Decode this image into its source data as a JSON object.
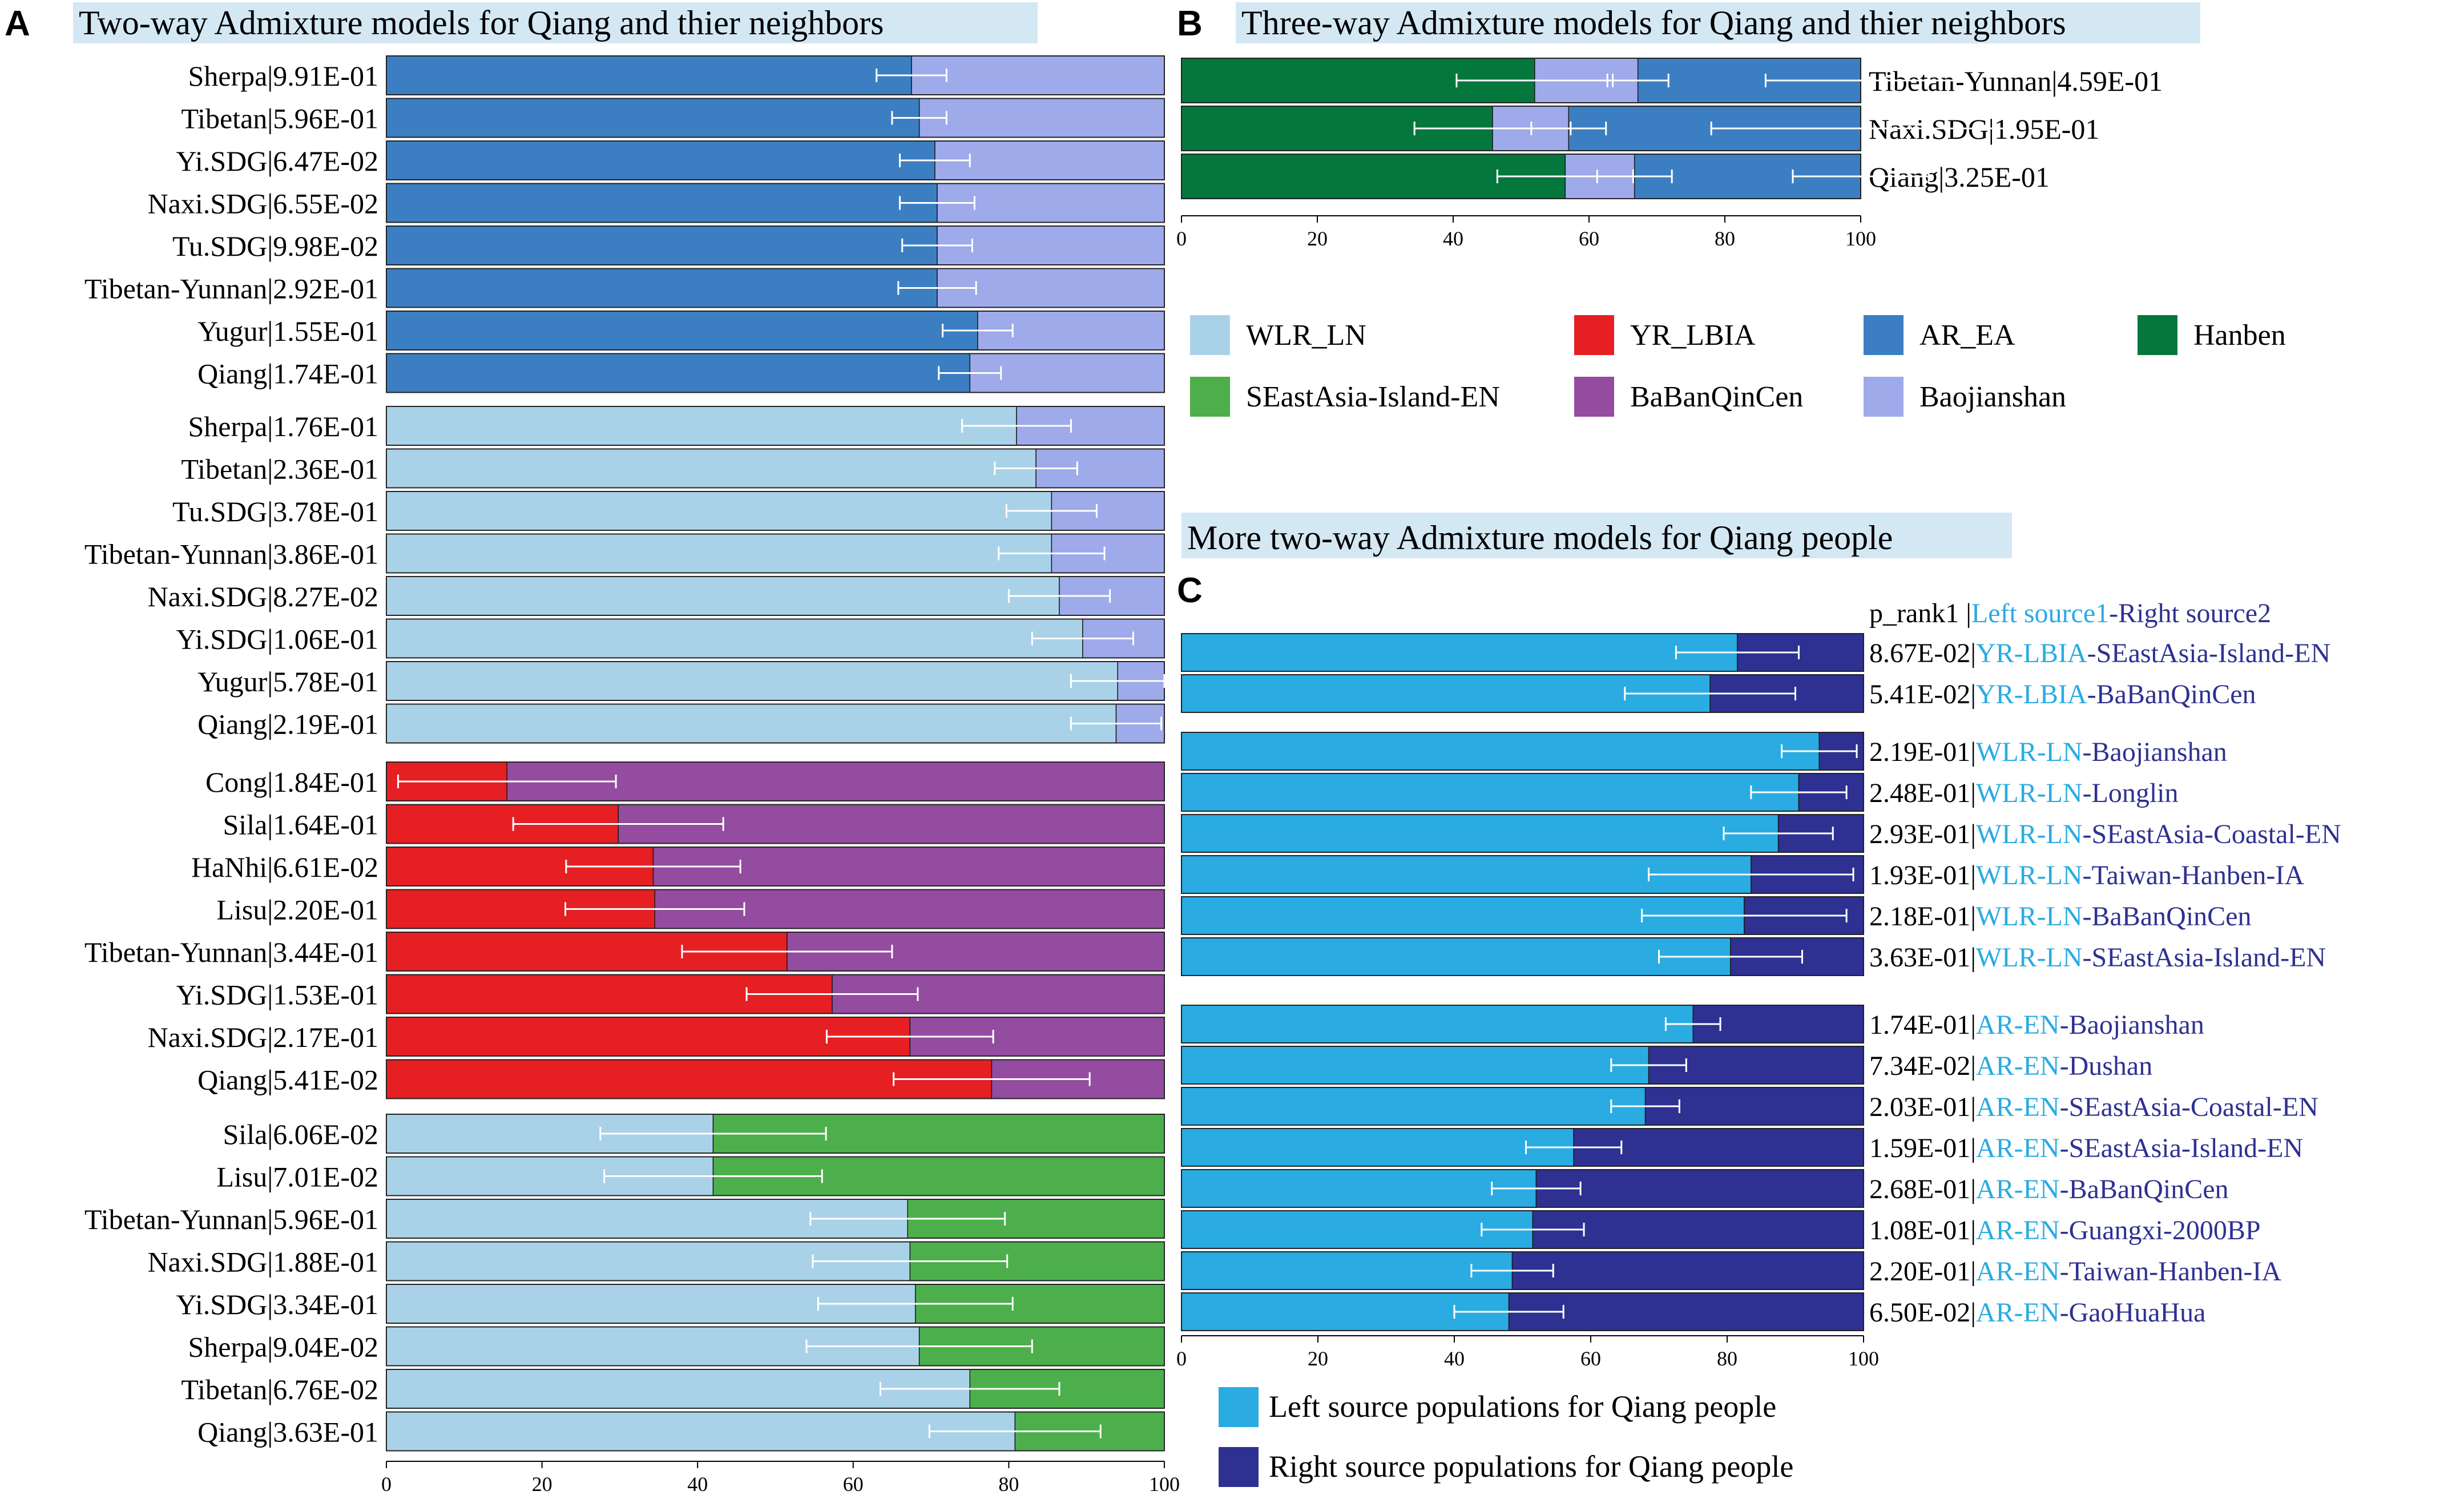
{
  "colors": {
    "WLR_LN": "#a9d2e8",
    "YR_LBIA": "#e61f23",
    "AR_EA": "#3b7fc2",
    "Hanben": "#04773d",
    "SEastAsia-Island-EN": "#4caf4b",
    "BaBanQinCen": "#934c9f",
    "Baojianshan": "#9eaae9",
    "left_source": "#2aabe2",
    "right_source": "#2e3191",
    "title_bg": "#d4e8f4",
    "label_c_source1": "#29abe2",
    "label_c_source2": "#2e3191",
    "errorbar": "#ffffff"
  },
  "panel_a": {
    "letter": "A",
    "title": "Two-way Admixture models for Qiang and thier neighbors",
    "axis_ticks": [
      "0",
      "20",
      "40",
      "60",
      "80",
      "100"
    ]
  },
  "panel_b": {
    "letter": "B",
    "title": "Three-way Admixture models for Qiang and thier neighbors",
    "axis_ticks": [
      "0",
      "20",
      "40",
      "60",
      "80",
      "100"
    ]
  },
  "legend_b": {
    "items": [
      {
        "label": "WLR_LN",
        "color_key": "WLR_LN"
      },
      {
        "label": "YR_LBIA",
        "color_key": "YR_LBIA"
      },
      {
        "label": "AR_EA",
        "color_key": "AR_EA"
      },
      {
        "label": "Hanben",
        "color_key": "Hanben"
      },
      {
        "label": "SEastAsia-Island-EN",
        "color_key": "SEastAsia-Island-EN"
      },
      {
        "label": "BaBanQinCen",
        "color_key": "BaBanQinCen"
      },
      {
        "label": "Baojianshan",
        "color_key": "Baojianshan"
      }
    ]
  },
  "panel_c": {
    "letter": "C",
    "title": "More two-way Admixture models for Qiang people",
    "header_rank": "p_rank1",
    "header_sep": "|",
    "header_left": "Left source1",
    "header_dash": "-",
    "header_right": "Right source2",
    "axis_ticks": [
      "0",
      "20",
      "40",
      "60",
      "80",
      "100"
    ]
  },
  "legend_c": {
    "items": [
      {
        "label": "Left source populations for Qiang people",
        "color_key": "left_source"
      },
      {
        "label": "Right source populations for Qiang people",
        "color_key": "right_source"
      }
    ]
  },
  "chart_data": [
    {
      "type": "bar",
      "stacked": true,
      "orientation": "horizontal",
      "panel": "A",
      "title": "Two-way Admixture models for Qiang and thier neighbors",
      "xlim": [
        0,
        100
      ],
      "groups": [
        {
          "sources": [
            "AR_EA",
            "Baojianshan"
          ],
          "rows": [
            {
              "label": "Sherpa|9.91E-01",
              "values": [
                67.5,
                32.5
              ],
              "error": 4.5
            },
            {
              "label": "Tibetan|5.96E-01",
              "values": [
                68.5,
                31.5
              ],
              "error": 3.5
            },
            {
              "label": "Yi.SDG|6.47E-02",
              "values": [
                70.5,
                29.5
              ],
              "error": 4.5
            },
            {
              "label": "Naxi.SDG|6.55E-02",
              "values": [
                70.8,
                29.2
              ],
              "error": 4.8
            },
            {
              "label": "Tu.SDG|9.98E-02",
              "values": [
                70.8,
                29.2
              ],
              "error": 4.5
            },
            {
              "label": "Tibetan-Yunnan|2.92E-01",
              "values": [
                70.8,
                29.2
              ],
              "error": 5.0
            },
            {
              "label": "Yugur|1.55E-01",
              "values": [
                76.0,
                24.0
              ],
              "error": 4.5
            },
            {
              "label": "Qiang|1.74E-01",
              "values": [
                75.0,
                25.0
              ],
              "error": 4.0
            }
          ]
        },
        {
          "sources": [
            "WLR_LN",
            "Baojianshan"
          ],
          "rows": [
            {
              "label": "Sherpa|1.76E-01",
              "values": [
                81.0,
                19.0
              ],
              "error": 7.0
            },
            {
              "label": "Tibetan|2.36E-01",
              "values": [
                83.5,
                16.5
              ],
              "error": 5.3
            },
            {
              "label": "Tu.SDG|3.78E-01",
              "values": [
                85.5,
                14.5
              ],
              "error": 5.8
            },
            {
              "label": "Tibetan-Yunnan|3.86E-01",
              "values": [
                85.5,
                14.5
              ],
              "error": 6.8
            },
            {
              "label": "Naxi.SDG|8.27E-02",
              "values": [
                86.5,
                13.5
              ],
              "error": 6.5
            },
            {
              "label": "Yi.SDG|1.06E-01",
              "values": [
                89.5,
                10.5
              ],
              "error": 6.5
            },
            {
              "label": "Yugur|5.78E-01",
              "values": [
                94.0,
                6.0
              ],
              "error": 6.0
            },
            {
              "label": "Qiang|2.19E-01",
              "values": [
                93.8,
                6.2
              ],
              "error": 5.8
            }
          ]
        },
        {
          "sources": [
            "YR_LBIA",
            "BaBanQinCen"
          ],
          "rows": [
            {
              "label": "Cong|1.84E-01",
              "values": [
                15.5,
                84.5
              ],
              "error": 14.0
            },
            {
              "label": "Sila|1.64E-01",
              "values": [
                29.8,
                70.2
              ],
              "error": 13.5
            },
            {
              "label": "HaNhi|6.61E-02",
              "values": [
                34.3,
                65.7
              ],
              "error": 11.2
            },
            {
              "label": "Lisu|2.20E-01",
              "values": [
                34.5,
                65.5
              ],
              "error": 11.5
            },
            {
              "label": "Tibetan-Yunnan|3.44E-01",
              "values": [
                51.5,
                48.5
              ],
              "error": 13.5
            },
            {
              "label": "Yi.SDG|1.53E-01",
              "values": [
                57.3,
                42.7
              ],
              "error": 11.0
            },
            {
              "label": "Naxi.SDG|2.17E-01",
              "values": [
                67.3,
                32.7
              ],
              "error": 10.7
            },
            {
              "label": "Qiang|5.41E-02",
              "values": [
                77.8,
                22.2
              ],
              "error": 12.6
            }
          ]
        },
        {
          "sources": [
            "WLR_LN",
            "SEastAsia-Island-EN"
          ],
          "rows": [
            {
              "label": "Sila|6.06E-02",
              "values": [
                42.0,
                58.0
              ],
              "error": 14.5
            },
            {
              "label": "Lisu|7.01E-02",
              "values": [
                42.0,
                58.0
              ],
              "error": 14.0
            },
            {
              "label": "Tibetan-Yunnan|5.96E-01",
              "values": [
                67.0,
                33.0
              ],
              "error": 12.5
            },
            {
              "label": "Naxi.SDG|1.88E-01",
              "values": [
                67.3,
                32.7
              ],
              "error": 12.5
            },
            {
              "label": "Yi.SDG|3.34E-01",
              "values": [
                68.0,
                32.0
              ],
              "error": 12.5
            },
            {
              "label": "Sherpa|9.04E-02",
              "values": [
                68.5,
                31.5
              ],
              "error": 14.5
            },
            {
              "label": "Tibetan|6.76E-02",
              "values": [
                75.0,
                25.0
              ],
              "error": 11.5
            },
            {
              "label": "Qiang|3.63E-01",
              "values": [
                80.8,
                19.2
              ],
              "error": 11.0
            }
          ]
        }
      ]
    },
    {
      "type": "bar",
      "stacked": true,
      "orientation": "horizontal",
      "panel": "B",
      "title": "Three-way Admixture models for Qiang and thier neighbors",
      "xlim": [
        0,
        100
      ],
      "sources": [
        "Hanben",
        "Baojianshan",
        "AR_EA"
      ],
      "rows": [
        {
          "label": "Tibetan-Yunnan|4.59E-01",
          "values": [
            52.0,
            15.2,
            32.8
          ],
          "errors": [
            11.5,
            4.5,
            14.0
          ]
        },
        {
          "label": "Naxi.SDG|1.95E-01",
          "values": [
            45.8,
            11.2,
            43.0
          ],
          "errors": [
            11.5,
            5.5,
            22.0
          ]
        },
        {
          "label": "Qiang|3.25E-01",
          "values": [
            56.5,
            10.2,
            33.3
          ],
          "errors": [
            10.0,
            5.5,
            10.0
          ]
        }
      ]
    },
    {
      "type": "bar",
      "stacked": true,
      "orientation": "horizontal",
      "panel": "C",
      "title": "More two-way Admixture models for Qiang people",
      "xlim": [
        0,
        100
      ],
      "series": [
        "Left source populations for Qiang people",
        "Right source populations for Qiang people"
      ],
      "groups": [
        {
          "rows": [
            {
              "rank": "8.67E-02",
              "left": "YR-LBIA",
              "right": "SEastAsia-Island-EN",
              "values": [
                81.5,
                18.5
              ],
              "error": 9.0
            },
            {
              "rank": "5.41E-02",
              "left": "YR-LBIA",
              "right": "BaBanQinCen",
              "values": [
                77.5,
                22.5
              ],
              "error": 12.5
            }
          ]
        },
        {
          "rows": [
            {
              "rank": "2.19E-01",
              "left": "WLR-LN",
              "right": "Baojianshan",
              "values": [
                93.5,
                6.5
              ],
              "error": 5.5
            },
            {
              "rank": "2.48E-01",
              "left": "WLR-LN",
              "right": "Longlin",
              "values": [
                90.5,
                9.5
              ],
              "error": 7.0
            },
            {
              "rank": "2.93E-01",
              "left": "WLR-LN",
              "right": "SEastAsia-Coastal-EN",
              "values": [
                87.5,
                12.5
              ],
              "error": 8.0
            },
            {
              "rank": "1.93E-01",
              "left": "WLR-LN",
              "right": "Taiwan-Hanben-IA",
              "values": [
                83.5,
                16.5
              ],
              "error": 15.0
            },
            {
              "rank": "2.18E-01",
              "left": "WLR-LN",
              "right": "BaBanQinCen",
              "values": [
                82.5,
                17.5
              ],
              "error": 15.0
            },
            {
              "rank": "3.63E-01",
              "left": "WLR-LN",
              "right": "SEastAsia-Island-EN",
              "values": [
                80.5,
                19.5
              ],
              "error": 10.5
            }
          ]
        },
        {
          "rows": [
            {
              "rank": "1.74E-01",
              "left": "AR-EN",
              "right": "Baojianshan",
              "values": [
                75.0,
                25.0
              ],
              "error": 4.0
            },
            {
              "rank": "7.34E-02",
              "left": "AR-EN",
              "right": "Dushan",
              "values": [
                68.5,
                31.5
              ],
              "error": 5.5
            },
            {
              "rank": "2.03E-01",
              "left": "AR-EN",
              "right": "SEastAsia-Coastal-EN",
              "values": [
                68.0,
                32.0
              ],
              "error": 5.0
            },
            {
              "rank": "1.59E-01",
              "left": "AR-EN",
              "right": "SEastAsia-Island-EN",
              "values": [
                57.5,
                42.5
              ],
              "error": 7.0
            },
            {
              "rank": "2.68E-01",
              "left": "AR-EN",
              "right": "BaBanQinCen",
              "values": [
                52.0,
                48.0
              ],
              "error": 6.5
            },
            {
              "rank": "1.08E-01",
              "left": "AR-EN",
              "right": "Guangxi-2000BP",
              "values": [
                51.5,
                48.5
              ],
              "error": 7.5
            },
            {
              "rank": "2.20E-01",
              "left": "AR-EN",
              "right": "Taiwan-Hanben-IA",
              "values": [
                48.5,
                51.5
              ],
              "error": 6.0
            },
            {
              "rank": "6.50E-02",
              "left": "AR-EN",
              "right": "GaoHuaHua",
              "values": [
                48.0,
                52.0
              ],
              "error": 8.0
            }
          ]
        }
      ]
    }
  ]
}
